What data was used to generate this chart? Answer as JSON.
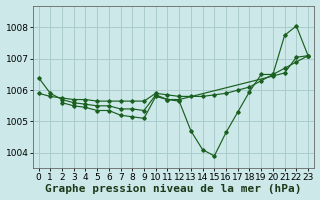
{
  "title": "Graphe pression niveau de la mer (hPa)",
  "bg_color": "#cce8e8",
  "grid_color": "#aacccc",
  "line_color": "#1a6020",
  "marker_color": "#1a6020",
  "xlim": [
    -0.5,
    23.5
  ],
  "ylim": [
    1003.5,
    1008.7
  ],
  "yticks": [
    1004,
    1005,
    1006,
    1007,
    1008
  ],
  "xticks": [
    0,
    1,
    2,
    3,
    4,
    5,
    6,
    7,
    8,
    9,
    10,
    11,
    12,
    13,
    14,
    15,
    16,
    17,
    18,
    19,
    20,
    21,
    22,
    23
  ],
  "series1": {
    "x": [
      0,
      1,
      2,
      3,
      4,
      5,
      6,
      7,
      8,
      9,
      10,
      11,
      12,
      13,
      14,
      15,
      16,
      17,
      18,
      19,
      20,
      21,
      22,
      23
    ],
    "y": [
      1005.9,
      1005.8,
      1005.75,
      1005.7,
      1005.7,
      1005.65,
      1005.65,
      1005.65,
      1005.65,
      1005.65,
      1005.9,
      1005.85,
      1005.8,
      1005.8,
      1005.8,
      1005.85,
      1005.9,
      1006.0,
      1006.1,
      1006.3,
      1006.5,
      1006.7,
      1006.9,
      1007.1
    ]
  },
  "series2": {
    "x": [
      0,
      1,
      2,
      3,
      4,
      5,
      6,
      7,
      8,
      9,
      10,
      11,
      12,
      20,
      21,
      22,
      23
    ],
    "y": [
      1006.4,
      1005.9,
      1005.7,
      1005.6,
      1005.55,
      1005.5,
      1005.5,
      1005.4,
      1005.4,
      1005.35,
      1005.85,
      1005.7,
      1005.7,
      1006.45,
      1006.55,
      1007.05,
      1007.1
    ]
  },
  "series3": {
    "x": [
      2,
      3,
      4,
      5,
      6,
      7,
      8,
      9,
      10,
      11,
      12,
      13,
      14,
      15,
      16,
      17,
      18,
      19,
      20,
      21,
      22,
      23
    ],
    "y": [
      1005.6,
      1005.5,
      1005.45,
      1005.35,
      1005.35,
      1005.2,
      1005.15,
      1005.1,
      1005.8,
      1005.7,
      1005.65,
      1004.7,
      1004.1,
      1003.9,
      1004.65,
      1005.3,
      1005.95,
      1006.5,
      1006.5,
      1007.75,
      1008.05,
      1007.1
    ]
  },
  "title_fontsize": 8,
  "tick_fontsize": 6.5
}
